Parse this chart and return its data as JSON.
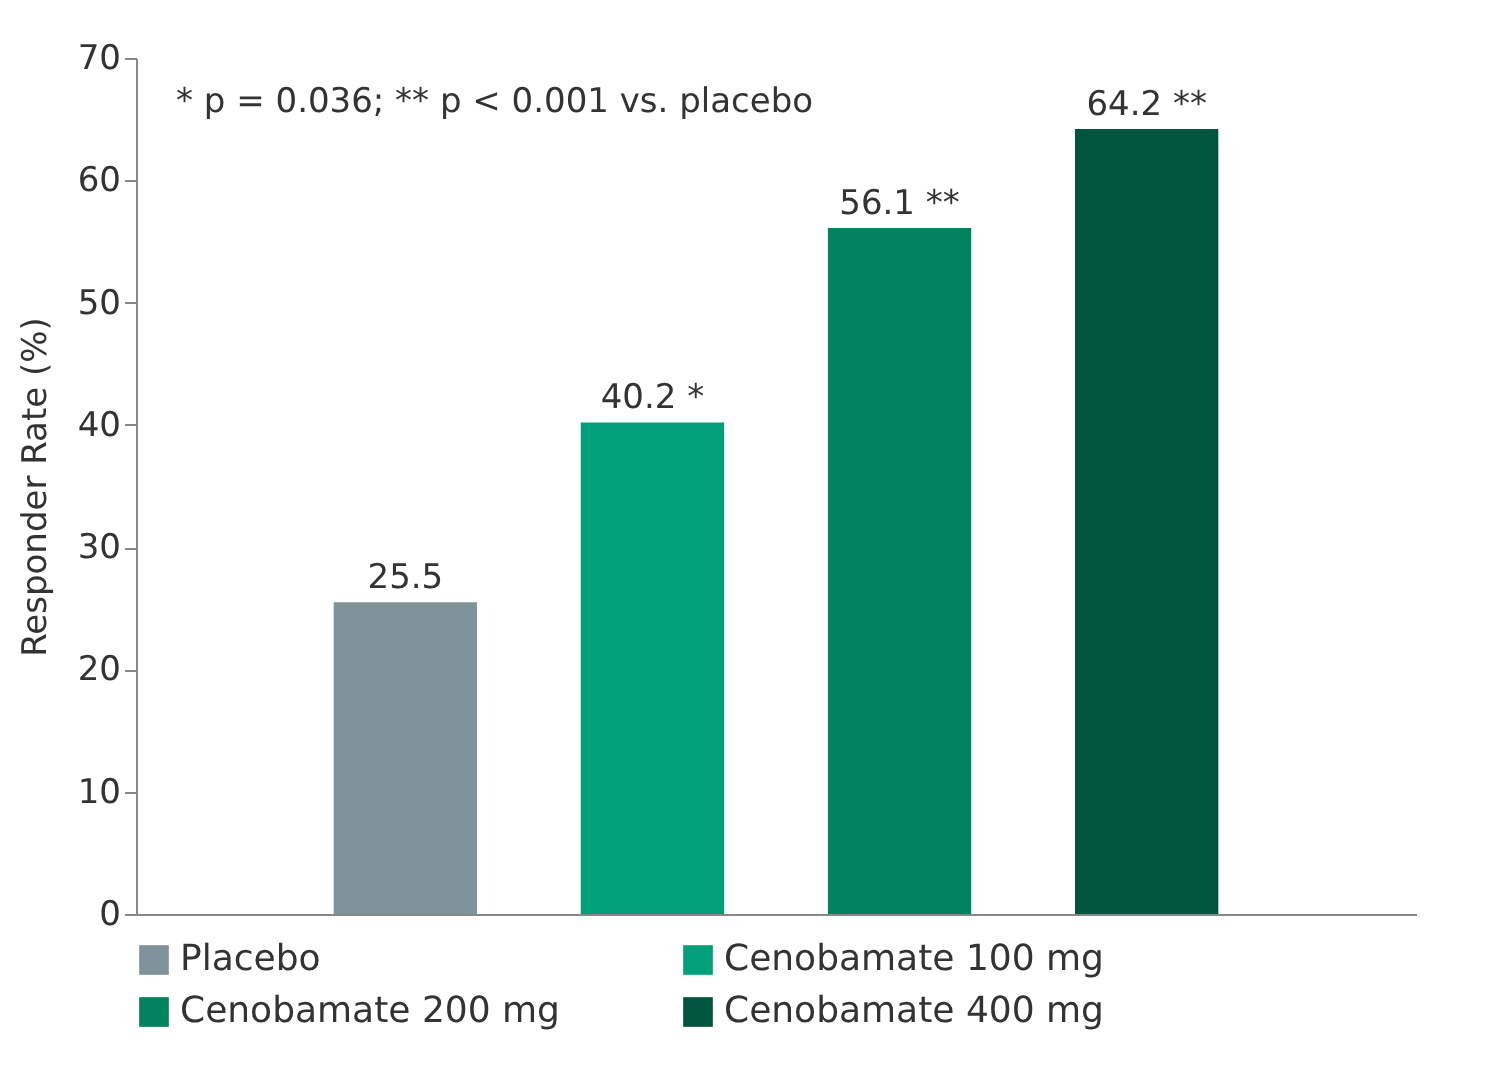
{
  "chart_data": {
    "type": "bar",
    "ylabel": "Responder Rate (%)",
    "categories": [
      null,
      null,
      null,
      null
    ],
    "series": [
      {
        "name": "Placebo",
        "color": "#7f939b",
        "values": [
          25.5,
          null,
          null,
          null
        ],
        "value_labels": [
          "25.5",
          null,
          null,
          null
        ]
      },
      {
        "name": "Cenobamate 100 mg",
        "color": "#00a07a",
        "values": [
          null,
          40.2,
          null,
          null
        ],
        "value_labels": [
          null,
          "40.2 *",
          null,
          null
        ]
      },
      {
        "name": "Cenobamate 200 mg",
        "color": "#00835e",
        "values": [
          null,
          null,
          56.1,
          null
        ],
        "value_labels": [
          null,
          null,
          "56.1 **",
          null
        ]
      },
      {
        "name": "Cenobamate 400 mg",
        "color": "#00553f",
        "values": [
          null,
          null,
          null,
          64.2
        ],
        "value_labels": [
          null,
          null,
          null,
          "64.2 **"
        ]
      }
    ],
    "ylim": [
      0,
      70
    ],
    "yticks": [
      0,
      10,
      20,
      30,
      40,
      50,
      60,
      70
    ],
    "grid": false,
    "legend": "bottom",
    "tick_labels": "y",
    "annotations": [
      "* p = 0.036; ** p < 0.001 vs. placebo"
    ]
  }
}
